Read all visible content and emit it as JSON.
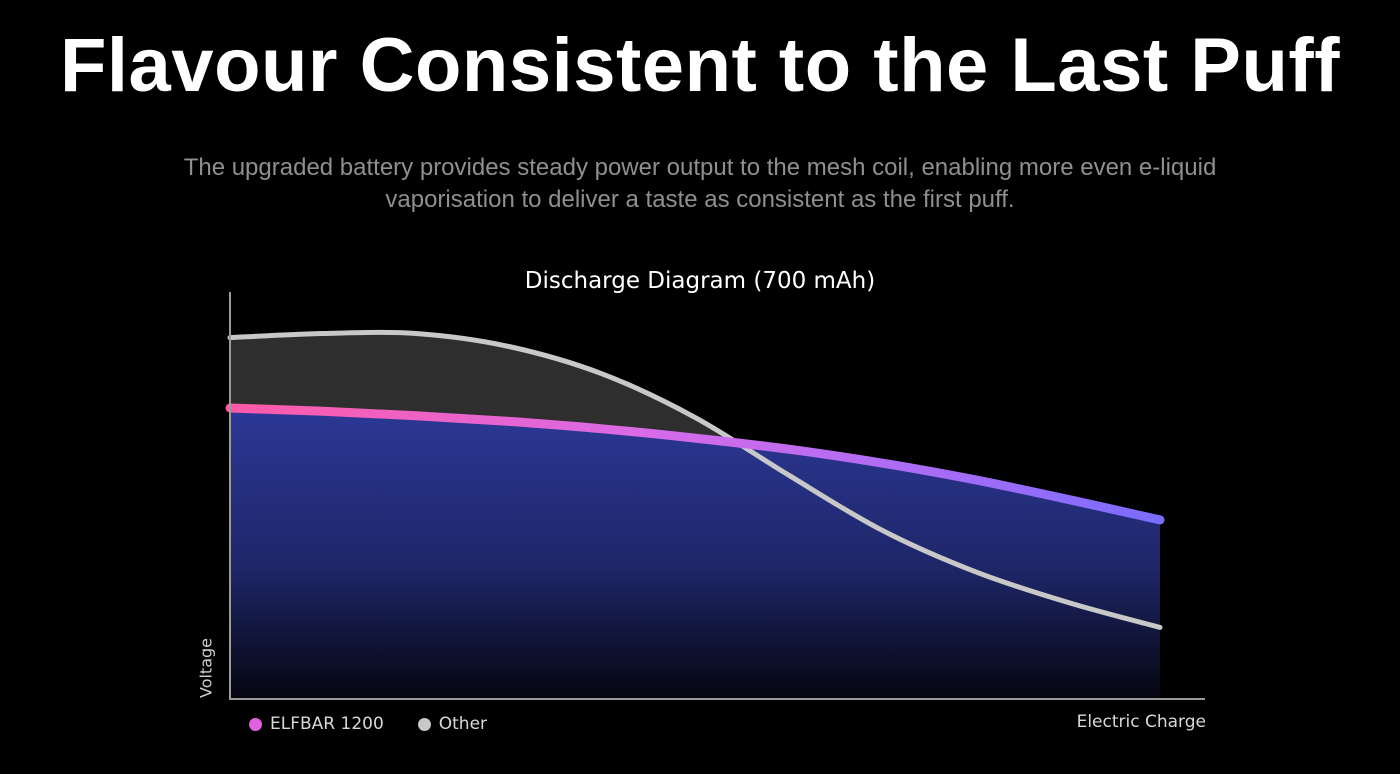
{
  "page": {
    "headline": "Flavour Consistent to the Last Puff",
    "description": "The upgraded battery provides steady power output to the mesh coil, enabling more even e-liquid vaporisation to deliver a taste as consistent as the first puff."
  },
  "chart_data": {
    "type": "area",
    "title": "Discharge Diagram (700 mAh)",
    "xlabel": "Electric Charge",
    "ylabel": "Voltage",
    "xlim": [
      0,
      100
    ],
    "ylim": [
      0,
      100
    ],
    "grid": false,
    "ticks": false,
    "legend_position": "bottom-left",
    "series": [
      {
        "name": "ELFBAR 1200",
        "color": "#e060e0",
        "color_end": "#7a6cff",
        "fill": "#2a3590",
        "x": [
          0,
          10,
          20,
          30,
          40,
          50,
          60,
          70,
          80,
          90,
          100
        ],
        "values": [
          71.5,
          70.7,
          69.6,
          68.2,
          66.4,
          64.1,
          61.4,
          58.0,
          53.9,
          49.1,
          44.0
        ]
      },
      {
        "name": "Other",
        "color": "#c8c8c8",
        "fill": "#2e2e2e",
        "x": [
          0,
          10,
          20,
          30,
          40,
          50,
          60,
          70,
          80,
          90,
          100
        ],
        "values": [
          88.8,
          89.8,
          89.8,
          86.6,
          79.9,
          69.2,
          55.1,
          41.6,
          31.4,
          23.8,
          17.6
        ]
      }
    ]
  }
}
